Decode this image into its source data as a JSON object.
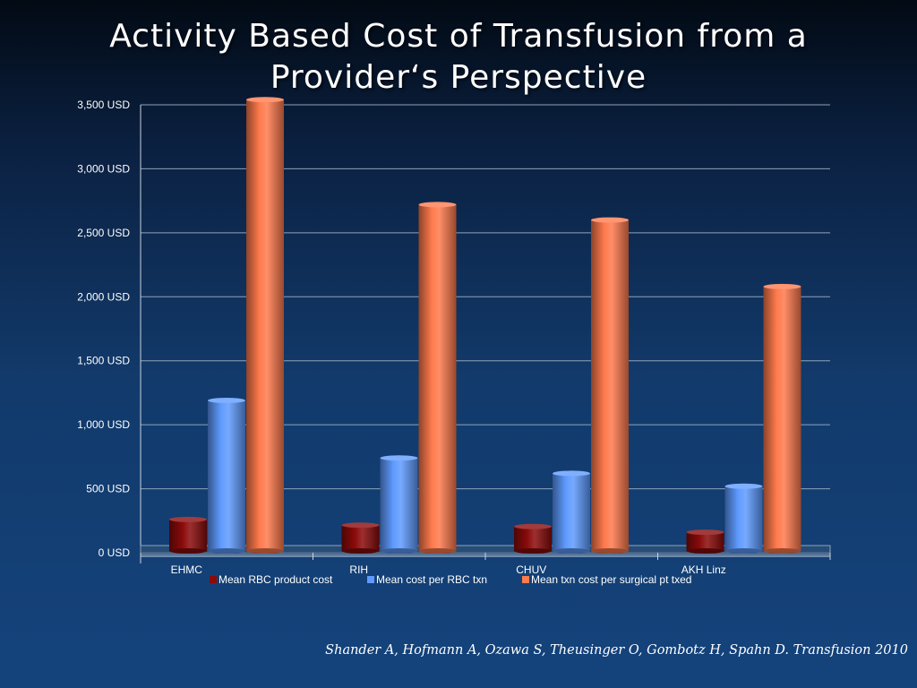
{
  "slide": {
    "title_line1": "Activity Based Cost of Transfusion from a",
    "title_line2": "Provider‘s Perspective",
    "citation": "Shander A, Hofmann A, Ozawa S, Theusinger O, Gombotz H, Spahn D. Transfusion  2010"
  },
  "chart_data": {
    "type": "bar",
    "style": "3d-cylinder",
    "categories": [
      "EHMC",
      "RIH",
      "CHUV",
      "AKH Linz"
    ],
    "series": [
      {
        "name": "Mean RBC product cost",
        "color": "#8b0a0a",
        "values": [
          260,
          215,
          205,
          160
        ]
      },
      {
        "name": "Mean cost per RBC txn",
        "color": "#5f9bff",
        "values": [
          1190,
          740,
          620,
          520
        ]
      },
      {
        "name": "Mean txn cost per surgical pt txed",
        "color": "#ff7a4d",
        "values": [
          3540,
          2720,
          2600,
          2080
        ]
      }
    ],
    "ylim": [
      0,
      3500
    ],
    "yticks": [
      0,
      500,
      1000,
      1500,
      2000,
      2500,
      3000,
      3500
    ],
    "ytick_labels": [
      "0 USD",
      "500 USD",
      "1,000 USD",
      "1,500 USD",
      "2,000 USD",
      "2,500 USD",
      "3,000 USD",
      "3,500 USD"
    ],
    "grid": true,
    "legend": "bottom"
  }
}
